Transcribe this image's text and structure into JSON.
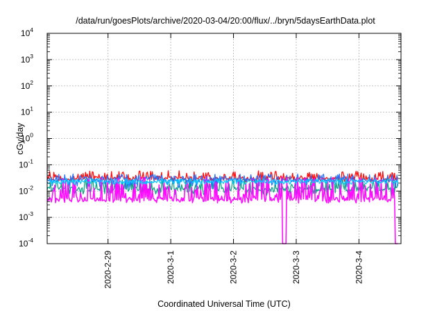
{
  "chart_data": {
    "type": "line",
    "title": "/data/run/goesPlots/archive/2020-03-04/20:00/flux/../bryn/5daysEarthData.plot",
    "xlabel": "Coordinated Universal Time (UTC)",
    "ylabel": "cGy/day",
    "y_scale": "log",
    "ylim": [
      0.0001,
      10000
    ],
    "y_ticks": [
      {
        "value": 10000,
        "base": "10",
        "exp": "4"
      },
      {
        "value": 1000,
        "base": "10",
        "exp": "3"
      },
      {
        "value": 100,
        "base": "10",
        "exp": "2"
      },
      {
        "value": 10,
        "base": "10",
        "exp": "1"
      },
      {
        "value": 1,
        "base": "10",
        "exp": "0"
      },
      {
        "value": 0.1,
        "base": "10",
        "exp": "-1"
      },
      {
        "value": 0.01,
        "base": "10",
        "exp": "-2"
      },
      {
        "value": 0.001,
        "base": "10",
        "exp": "-3"
      },
      {
        "value": 0.0001,
        "base": "10",
        "exp": "-4"
      }
    ],
    "x_range_days": [
      -1.97,
      3.67
    ],
    "x_ticks": [
      {
        "label": "2020-2-29",
        "day": -1
      },
      {
        "label": "2020-3-1",
        "day": 0
      },
      {
        "label": "2020-3-2",
        "day": 1
      },
      {
        "label": "2020-3-3",
        "day": 2
      },
      {
        "label": "2020-3-4",
        "day": 3
      }
    ],
    "grid": true,
    "series": [
      {
        "color": "#ff0000",
        "x_range_days": [
          -1.97,
          3.62
        ],
        "baseline": 0.03,
        "noise_low": 0.022,
        "noise_high": 0.06
      },
      {
        "color": "#00a080",
        "x_range_days": [
          -1.97,
          3.62
        ],
        "baseline": 0.012,
        "noise_low": 0.007,
        "noise_high": 0.03
      },
      {
        "color": "#1f6fff",
        "x_range_days": [
          -1.97,
          3.62
        ],
        "baseline": 0.026,
        "noise_low": 0.012,
        "noise_high": 0.045
      },
      {
        "color": "#ff00ff",
        "x_range_days": [
          -1.97,
          3.62
        ],
        "baseline": 0.005,
        "noise_low": 0.0035,
        "noise_high": 0.035,
        "dropouts": [
          {
            "start_day": 1.78,
            "end_day": 1.84
          },
          {
            "start_day": 3.58,
            "end_day": 3.62
          }
        ]
      },
      {
        "color": "#00c8ff",
        "x_range_days": [
          -1.97,
          3.62
        ],
        "baseline": 0.022,
        "noise_low": 0.018,
        "noise_high": 0.03
      }
    ]
  }
}
